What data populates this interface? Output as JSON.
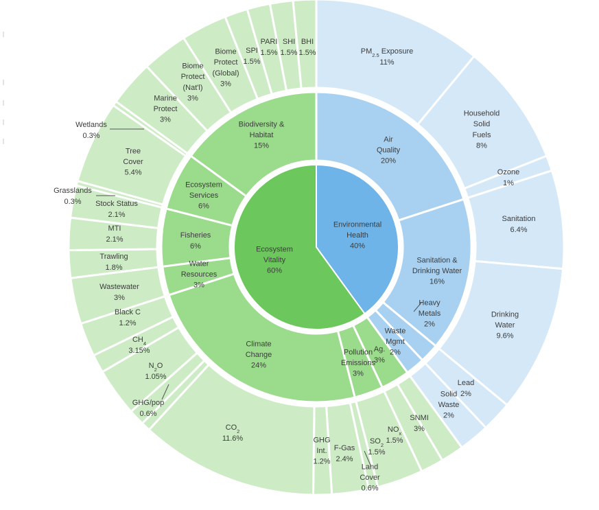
{
  "chart_data": {
    "type": "sunburst",
    "colors": {
      "eco": [
        "#6cc85c",
        "#9bdb8c",
        "#cdecc5"
      ],
      "env": [
        "#6eb4e8",
        "#a8d1f1",
        "#d4e8f8"
      ]
    },
    "root": [
      {
        "name": "Environmental Health",
        "value": "40%",
        "group": "env",
        "weight": 40,
        "children": [
          {
            "name": "Air Quality",
            "value": "20%",
            "weight": 20,
            "children": [
              {
                "name": "PM2.5 Exposure",
                "value": "11%",
                "weight": 11
              },
              {
                "name": "Household Solid Fuels",
                "value": "8%",
                "weight": 8
              },
              {
                "name": "Ozone",
                "value": "1%",
                "weight": 1
              }
            ]
          },
          {
            "name": "Sanitation & Drinking Water",
            "value": "16%",
            "weight": 16,
            "children": [
              {
                "name": "Sanitation",
                "value": "6.4%",
                "weight": 6.4
              },
              {
                "name": "Drinking Water",
                "value": "9.6%",
                "weight": 9.6
              }
            ]
          },
          {
            "name": "Heavy Metals",
            "value": "2%",
            "weight": 2,
            "children": [
              {
                "name": "Lead",
                "value": "2%",
                "weight": 2
              }
            ]
          },
          {
            "name": "Waste Mgmt",
            "value": "2%",
            "weight": 2,
            "children": [
              {
                "name": "Solid Waste",
                "value": "2%",
                "weight": 2
              }
            ]
          }
        ]
      },
      {
        "name": "Ecosystem Vitality",
        "value": "60%",
        "group": "eco",
        "weight": 60,
        "children": [
          {
            "name": "Pollution Emissions",
            "value": "3%",
            "weight": 3,
            "children": [
              {
                "name": "SO2",
                "value": "1.5%",
                "weight": 1.5
              },
              {
                "name": "NOx",
                "value": "1.5%",
                "weight": 1.5
              }
            ]
          },
          {
            "name": "Ag.",
            "value": "3%",
            "weight": 3,
            "children": [
              {
                "name": "SNMI",
                "value": "3%",
                "weight": 3
              }
            ]
          },
          {
            "name": "Climate Change",
            "value": "24%",
            "weight": 24,
            "children": [
              {
                "name": "Land Cover",
                "value": "0.6%",
                "weight": 0.6
              },
              {
                "name": "F-Gas",
                "value": "2.4%",
                "weight": 2.4
              },
              {
                "name": "GHG Int.",
                "value": "1.2%",
                "weight": 1.2
              },
              {
                "name": "CO2",
                "value": "11.6%",
                "weight": 11.6
              },
              {
                "name": "GHG/pop",
                "value": "0.6%",
                "weight": 0.6
              },
              {
                "name": "N2O",
                "value": "1.05%",
                "weight": 1.05
              },
              {
                "name": "CH4",
                "value": "3.15%",
                "weight": 3.15
              },
              {
                "name": "Black C",
                "value": "1.2%",
                "weight": 1.2
              },
              {
                "name": "",
                "value": "",
                "weight": 2.2
              }
            ]
          },
          {
            "name": "Water Resources",
            "value": "3%",
            "weight": 3,
            "children": [
              {
                "name": "Wastewater",
                "value": "3%",
                "weight": 3
              }
            ]
          },
          {
            "name": "Fisheries",
            "value": "6%",
            "weight": 6,
            "children": [
              {
                "name": "Trawling",
                "value": "1.8%",
                "weight": 1.8
              },
              {
                "name": "MTI",
                "value": "2.1%",
                "weight": 2.1
              },
              {
                "name": "Stock Status",
                "value": "2.1%",
                "weight": 2.1
              }
            ]
          },
          {
            "name": "Ecosystem Services",
            "value": "6%",
            "weight": 6,
            "children": [
              {
                "name": "Grasslands",
                "value": "0.3%",
                "weight": 0.3
              },
              {
                "name": "Tree Cover",
                "value": "5.4%",
                "weight": 5.4
              },
              {
                "name": "Wetlands",
                "value": "0.3%",
                "weight": 0.3
              }
            ]
          },
          {
            "name": "Biodiversity & Habitat",
            "value": "15%",
            "weight": 15,
            "children": [
              {
                "name": "Marine Protect",
                "value": "3%",
                "weight": 3
              },
              {
                "name": "Biome Protect (Nat'l)",
                "value": "3%",
                "weight": 3
              },
              {
                "name": "Biome Protect (Global)",
                "value": "3%",
                "weight": 3
              },
              {
                "name": "SPI",
                "value": "1.5%",
                "weight": 1.5
              },
              {
                "name": "PARI",
                "value": "1.5%",
                "weight": 1.5
              },
              {
                "name": "SHI",
                "value": "1.5%",
                "weight": 1.5
              },
              {
                "name": "BHI",
                "value": "1.5%",
                "weight": 1.5
              }
            ]
          }
        ]
      }
    ],
    "labels": [
      {
        "ring": 0,
        "lines": [
          "Environmental",
          "Health",
          "40%"
        ]
      },
      {
        "ring": 0,
        "lines": [
          "Ecosystem",
          "Vitality",
          "60%"
        ]
      },
      {
        "ring": 1,
        "lines": [
          "Air",
          "Quality",
          "20%"
        ]
      },
      {
        "ring": 1,
        "lines": [
          "Sanitation &",
          "Drinking Water",
          "16%"
        ]
      },
      {
        "ring": 1,
        "lines": [
          "Heavy",
          "Metals",
          "2%"
        ]
      },
      {
        "ring": 1,
        "lines": [
          "Waste",
          "Mgmt",
          "2%"
        ]
      },
      {
        "ring": 1,
        "lines": [
          "Ag.",
          "3%"
        ]
      },
      {
        "ring": 1,
        "lines": [
          "Pollution",
          "Emissions",
          "3%"
        ]
      },
      {
        "ring": 1,
        "lines": [
          "Climate",
          "Change",
          "24%"
        ]
      },
      {
        "ring": 1,
        "lines": [
          "Water",
          "Resources",
          "3%"
        ]
      },
      {
        "ring": 1,
        "lines": [
          "Fisheries",
          "6%"
        ]
      },
      {
        "ring": 1,
        "lines": [
          "Ecosystem",
          "Services",
          "6%"
        ]
      },
      {
        "ring": 1,
        "lines": [
          "Biodiversity &",
          "Habitat",
          "15%"
        ]
      },
      {
        "ring": 2,
        "lines": [
          "PM2.5 Exposure",
          "11%"
        ]
      },
      {
        "ring": 2,
        "lines": [
          "Household",
          "Solid",
          "Fuels",
          "8%"
        ]
      },
      {
        "ring": 2,
        "lines": [
          "Ozone",
          "1%"
        ]
      },
      {
        "ring": 2,
        "lines": [
          "Sanitation",
          "6.4%"
        ]
      },
      {
        "ring": 2,
        "lines": [
          "Drinking",
          "Water",
          "9.6%"
        ]
      },
      {
        "ring": 2,
        "lines": [
          "Lead",
          "2%"
        ]
      },
      {
        "ring": 2,
        "lines": [
          "Solid",
          "Waste",
          "2%"
        ]
      },
      {
        "ring": 2,
        "lines": [
          "SNMI",
          "3%"
        ]
      },
      {
        "ring": 2,
        "lines": [
          "NOx",
          "1.5%"
        ]
      },
      {
        "ring": 2,
        "lines": [
          "SO2",
          "1.5%"
        ]
      },
      {
        "ring": 2,
        "lines": [
          "Land",
          "Cover",
          "0.6%"
        ]
      },
      {
        "ring": 2,
        "lines": [
          "F-Gas",
          "2.4%"
        ]
      },
      {
        "ring": 2,
        "lines": [
          "GHG",
          "Int.",
          "1.2%"
        ]
      },
      {
        "ring": 2,
        "lines": [
          "CO2",
          "11.6%"
        ]
      },
      {
        "ring": 2,
        "lines": [
          "GHG/pop",
          "0.6%"
        ]
      },
      {
        "ring": 2,
        "lines": [
          "N2O",
          "1.05%"
        ]
      },
      {
        "ring": 2,
        "lines": [
          "CH4",
          "3.15%"
        ]
      },
      {
        "ring": 2,
        "lines": [
          "Black C",
          "1.2%"
        ]
      },
      {
        "ring": 2,
        "lines": [
          "Wastewater",
          "3%"
        ]
      },
      {
        "ring": 2,
        "lines": [
          "Trawling",
          "1.8%"
        ]
      },
      {
        "ring": 2,
        "lines": [
          "MTI",
          "2.1%"
        ]
      },
      {
        "ring": 2,
        "lines": [
          "Stock Status",
          "2.1%"
        ]
      },
      {
        "ring": 2,
        "lines": [
          "Grasslands",
          "0.3%"
        ]
      },
      {
        "ring": 2,
        "lines": [
          "Tree",
          "Cover",
          "5.4%"
        ]
      },
      {
        "ring": 2,
        "lines": [
          "Wetlands",
          "0.3%"
        ]
      },
      {
        "ring": 2,
        "lines": [
          "Marine",
          "Protect",
          "3%"
        ]
      },
      {
        "ring": 2,
        "lines": [
          "Biome",
          "Protect",
          "(Nat'l)",
          "3%"
        ]
      },
      {
        "ring": 2,
        "lines": [
          "Biome",
          "Protect",
          "(Global)",
          "3%"
        ]
      },
      {
        "ring": 2,
        "lines": [
          "SPI",
          "1.5%"
        ]
      },
      {
        "ring": 2,
        "lines": [
          "PARI",
          "1.5%"
        ]
      },
      {
        "ring": 2,
        "lines": [
          "SHI",
          "1.5%"
        ]
      },
      {
        "ring": 2,
        "lines": [
          "BHI",
          "1.5%"
        ]
      }
    ]
  }
}
